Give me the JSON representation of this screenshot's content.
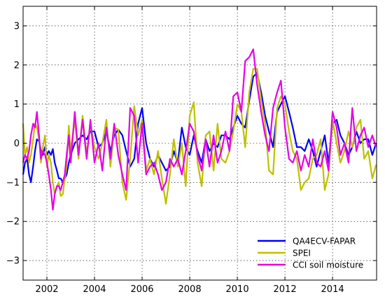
{
  "chart_data": {
    "type": "line",
    "title": "",
    "xlabel": "",
    "ylabel": "",
    "xlim": [
      2001.0,
      2015.85
    ],
    "ylim": [
      -3.5,
      3.5
    ],
    "xticks": [
      2002,
      2004,
      2006,
      2008,
      2010,
      2012,
      2014
    ],
    "xtick_labels": [
      "2002",
      "2004",
      "2006",
      "2008",
      "2010",
      "2012",
      "2014"
    ],
    "yticks": [
      3,
      2,
      1,
      0,
      -1,
      -2,
      -3
    ],
    "ytick_labels": [
      "3",
      "2",
      "1",
      "0",
      "−1",
      "−2",
      "−3"
    ],
    "grid": true,
    "legend_position": "lower-right",
    "series": [
      {
        "name": "QA4ECV-FAPAR",
        "color": "#0000ff",
        "x": [
          2001.0,
          2001.08,
          2001.17,
          2001.25,
          2001.33,
          2001.42,
          2001.5,
          2001.58,
          2001.67,
          2001.75,
          2001.83,
          2001.92,
          2002.0,
          2002.08,
          2002.17,
          2002.25,
          2002.33,
          2002.42,
          2002.5,
          2002.58,
          2002.67,
          2002.75,
          2002.83,
          2002.92,
          2003.0,
          2003.17,
          2003.33,
          2003.5,
          2003.67,
          2003.83,
          2004.0,
          2004.17,
          2004.33,
          2004.5,
          2004.67,
          2004.83,
          2005.0,
          2005.17,
          2005.33,
          2005.5,
          2005.67,
          2005.83,
          2006.0,
          2006.17,
          2006.33,
          2006.5,
          2006.67,
          2006.83,
          2007.0,
          2007.17,
          2007.33,
          2007.5,
          2007.67,
          2007.83,
          2008.0,
          2008.17,
          2008.33,
          2008.5,
          2008.67,
          2008.83,
          2009.0,
          2009.17,
          2009.33,
          2009.5,
          2009.67,
          2009.83,
          2010.0,
          2010.17,
          2010.33,
          2010.5,
          2010.67,
          2010.83,
          2011.0,
          2011.17,
          2011.33,
          2011.5,
          2011.67,
          2011.83,
          2012.0,
          2012.17,
          2012.33,
          2012.5,
          2012.67,
          2012.83,
          2013.0,
          2013.17,
          2013.33,
          2013.5,
          2013.67,
          2013.83,
          2014.0,
          2014.17,
          2014.33,
          2014.5,
          2014.67,
          2014.83,
          2015.0,
          2015.17,
          2015.33,
          2015.5,
          2015.67,
          2015.83
        ],
        "y": [
          -0.8,
          -0.5,
          -0.4,
          -0.8,
          -1.0,
          -0.6,
          -0.2,
          0.1,
          0.05,
          -0.2,
          -0.3,
          -0.1,
          -0.3,
          -0.2,
          -0.3,
          -0.15,
          -0.5,
          -0.7,
          -0.9,
          -0.9,
          -1.0,
          -0.9,
          -0.8,
          -0.5,
          -0.3,
          0.0,
          0.1,
          0.2,
          0.1,
          0.3,
          0.3,
          -0.1,
          0.0,
          0.3,
          -0.2,
          0.2,
          0.35,
          0.2,
          -0.2,
          -0.6,
          -0.4,
          0.5,
          0.9,
          0.0,
          -0.4,
          -0.6,
          -0.3,
          -0.5,
          -0.7,
          -0.6,
          -0.2,
          -0.5,
          0.4,
          -0.1,
          -0.3,
          0.2,
          -0.2,
          -0.5,
          0.1,
          -0.2,
          0.0,
          -0.1,
          0.2,
          0.2,
          0.1,
          0.4,
          0.7,
          0.5,
          0.4,
          1.1,
          1.7,
          1.8,
          1.3,
          0.7,
          0.3,
          -0.1,
          0.8,
          1.0,
          1.2,
          0.8,
          0.4,
          -0.1,
          -0.1,
          -0.2,
          0.1,
          -0.2,
          -0.6,
          -0.2,
          0.2,
          -0.5,
          0.5,
          0.6,
          0.2,
          0.0,
          -0.3,
          -0.1,
          0.3,
          0.0,
          0.1,
          0.1,
          -0.3,
          0.0
        ]
      },
      {
        "name": "SPEI",
        "color": "#bfbf00",
        "x": [
          2001.0,
          2001.08,
          2001.17,
          2001.25,
          2001.33,
          2001.42,
          2001.5,
          2001.58,
          2001.67,
          2001.75,
          2001.83,
          2001.92,
          2002.0,
          2002.08,
          2002.17,
          2002.25,
          2002.33,
          2002.42,
          2002.5,
          2002.58,
          2002.67,
          2002.75,
          2002.83,
          2002.92,
          2003.0,
          2003.17,
          2003.33,
          2003.5,
          2003.67,
          2003.83,
          2004.0,
          2004.17,
          2004.33,
          2004.5,
          2004.67,
          2004.83,
          2005.0,
          2005.17,
          2005.33,
          2005.5,
          2005.67,
          2005.83,
          2006.0,
          2006.17,
          2006.33,
          2006.5,
          2006.67,
          2006.83,
          2007.0,
          2007.17,
          2007.33,
          2007.5,
          2007.67,
          2007.83,
          2008.0,
          2008.17,
          2008.33,
          2008.5,
          2008.67,
          2008.83,
          2009.0,
          2009.17,
          2009.33,
          2009.5,
          2009.67,
          2009.83,
          2010.0,
          2010.17,
          2010.33,
          2010.5,
          2010.67,
          2010.83,
          2011.0,
          2011.17,
          2011.33,
          2011.5,
          2011.67,
          2011.83,
          2012.0,
          2012.17,
          2012.33,
          2012.5,
          2012.67,
          2012.83,
          2013.0,
          2013.17,
          2013.33,
          2013.5,
          2013.67,
          2013.83,
          2014.0,
          2014.17,
          2014.33,
          2014.5,
          2014.67,
          2014.83,
          2015.0,
          2015.17,
          2015.33,
          2015.5,
          2015.67,
          2015.83
        ],
        "y": [
          0.5,
          -0.3,
          -0.1,
          -0.5,
          -0.3,
          0.1,
          0.5,
          0.4,
          0.1,
          -0.5,
          -0.1,
          0.2,
          -0.6,
          -0.3,
          -0.5,
          -1.0,
          -1.3,
          -1.1,
          -1.0,
          -1.35,
          -1.3,
          -0.9,
          -0.6,
          0.45,
          -0.2,
          0.6,
          -0.4,
          0.7,
          -0.3,
          0.5,
          -0.1,
          -0.4,
          0.0,
          0.6,
          -0.6,
          0.4,
          0.35,
          -1.0,
          -1.45,
          -0.4,
          0.95,
          0.2,
          0.6,
          -0.7,
          -0.4,
          -0.8,
          -0.2,
          -0.9,
          -1.55,
          -0.8,
          0.1,
          -0.6,
          0.0,
          -1.1,
          0.7,
          1.05,
          -0.5,
          -1.1,
          0.2,
          0.3,
          -0.7,
          0.5,
          -0.4,
          -0.5,
          -0.2,
          0.3,
          1.0,
          0.8,
          -0.1,
          1.3,
          1.9,
          1.9,
          1.1,
          0.5,
          -0.7,
          -0.8,
          0.9,
          1.2,
          1.0,
          0.3,
          -0.2,
          -0.4,
          -1.2,
          -1.0,
          -0.9,
          -0.4,
          -0.3,
          0.1,
          -1.2,
          -0.8,
          0.6,
          0.0,
          -0.5,
          -0.2,
          0.3,
          -0.1,
          0.4,
          0.6,
          -0.4,
          -0.2,
          -0.9,
          -0.55
        ]
      },
      {
        "name": "CCI soil moisture",
        "color": "#e600e6",
        "x": [
          2001.0,
          2001.08,
          2001.17,
          2001.25,
          2001.33,
          2001.42,
          2001.5,
          2001.58,
          2001.67,
          2001.75,
          2001.83,
          2001.92,
          2002.0,
          2002.08,
          2002.17,
          2002.25,
          2002.33,
          2002.42,
          2002.5,
          2002.58,
          2002.67,
          2002.75,
          2002.83,
          2002.92,
          2003.0,
          2003.17,
          2003.33,
          2003.5,
          2003.67,
          2003.83,
          2004.0,
          2004.17,
          2004.33,
          2004.5,
          2004.67,
          2004.83,
          2005.0,
          2005.17,
          2005.33,
          2005.5,
          2005.67,
          2005.83,
          2006.0,
          2006.17,
          2006.33,
          2006.5,
          2006.67,
          2006.83,
          2007.0,
          2007.17,
          2007.33,
          2007.5,
          2007.67,
          2007.83,
          2008.0,
          2008.17,
          2008.33,
          2008.5,
          2008.67,
          2008.83,
          2009.0,
          2009.17,
          2009.33,
          2009.5,
          2009.67,
          2009.83,
          2010.0,
          2010.17,
          2010.33,
          2010.5,
          2010.67,
          2010.83,
          2011.0,
          2011.17,
          2011.33,
          2011.5,
          2011.67,
          2011.83,
          2012.0,
          2012.17,
          2012.33,
          2012.5,
          2012.67,
          2012.83,
          2013.0,
          2013.17,
          2013.33,
          2013.5,
          2013.67,
          2013.83,
          2014.0,
          2014.17,
          2014.33,
          2014.5,
          2014.67,
          2014.83,
          2015.0,
          2015.17,
          2015.33,
          2015.5,
          2015.67,
          2015.83
        ],
        "y": [
          -0.5,
          -0.3,
          -0.4,
          -0.2,
          0.2,
          0.5,
          0.4,
          0.8,
          0.2,
          -0.4,
          -0.2,
          -0.3,
          -0.5,
          -0.8,
          -1.2,
          -1.7,
          -1.3,
          -1.1,
          -1.1,
          -1.2,
          -1.0,
          -0.8,
          -0.3,
          0.2,
          -0.5,
          0.8,
          -0.3,
          0.6,
          -0.4,
          0.6,
          -0.5,
          0.0,
          -0.7,
          0.4,
          -0.4,
          0.5,
          -0.3,
          -0.8,
          -1.2,
          0.9,
          0.7,
          -0.5,
          0.5,
          -0.8,
          -0.6,
          -0.5,
          -0.8,
          -1.2,
          -1.0,
          -0.4,
          -0.6,
          -0.4,
          -0.8,
          -0.2,
          0.5,
          0.3,
          -0.3,
          -0.7,
          0.1,
          -0.6,
          0.2,
          -0.5,
          -0.2,
          0.3,
          -0.2,
          1.2,
          1.3,
          0.8,
          2.1,
          2.2,
          2.4,
          1.5,
          0.8,
          0.2,
          -0.2,
          0.9,
          1.3,
          1.6,
          0.4,
          -0.4,
          -0.5,
          -0.2,
          -0.7,
          -0.3,
          -0.6,
          0.1,
          -0.5,
          -0.6,
          -0.2,
          -0.7,
          0.8,
          0.4,
          -0.3,
          0.0,
          -0.5,
          0.9,
          -0.2,
          0.2,
          0.4,
          -0.1,
          0.2,
          -0.1
        ]
      }
    ]
  }
}
